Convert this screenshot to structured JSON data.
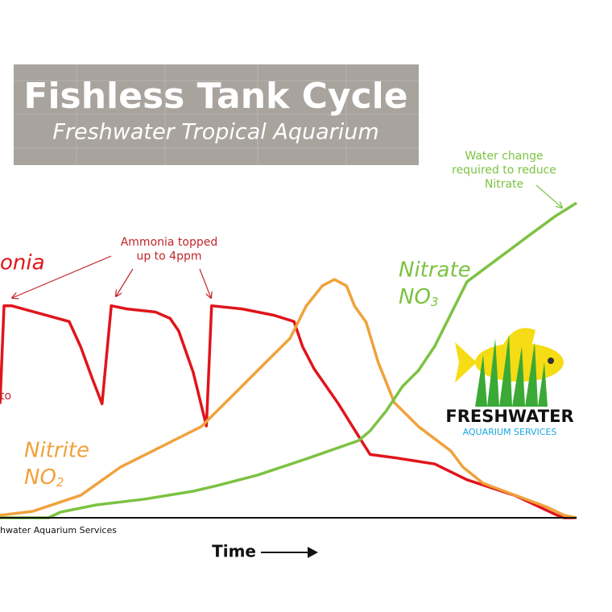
{
  "chart_data": {
    "type": "line",
    "title": "Fishless Tank Cycle",
    "subtitle": "Freshwater Tropical Aquarium",
    "xlabel": "Time",
    "footer": "hwater Aquarium Services",
    "xlim": [
      0,
      100
    ],
    "ylim": [
      0,
      100
    ],
    "series": [
      {
        "name": "onia",
        "color": "#e0151b",
        "x": [
          0,
          0.7,
          2,
          8,
          12,
          14,
          16,
          17.7,
          19.3,
          22,
          27,
          29.5,
          31,
          33.5,
          35.8,
          36.7,
          42,
          47.5,
          51,
          52.5,
          54.5,
          58.7,
          62.8,
          64.2,
          68.4,
          75.4,
          81,
          89.4,
          96.4,
          97.8,
          100
        ],
        "values": [
          36,
          67,
          67,
          64,
          62,
          54,
          44,
          36,
          67,
          66,
          65,
          63,
          59,
          46,
          29,
          67,
          66,
          64,
          62,
          54,
          47,
          36,
          24,
          20,
          19,
          17,
          12,
          7,
          1,
          0,
          0
        ]
      },
      {
        "name": "Nitrite",
        "formula": {
          "base": "NO",
          "sub": "2"
        },
        "color": "#f0a23c",
        "x": [
          0,
          5.6,
          14,
          20.9,
          27.9,
          34.9,
          40.5,
          46.1,
          50.3,
          53.1,
          55.9,
          58,
          60.1,
          61.5,
          63.5,
          65.6,
          68.4,
          72.6,
          78.2,
          80.3,
          83.8,
          89.4,
          95,
          97.8,
          100
        ],
        "values": [
          0.8,
          2,
          7.1,
          16,
          22.4,
          28.8,
          38.9,
          49.1,
          56.7,
          66.9,
          73.3,
          75.3,
          73.3,
          66.9,
          61.8,
          49.1,
          36.4,
          28.8,
          21.1,
          16,
          10.9,
          7.1,
          3.3,
          0.8,
          0
        ]
      },
      {
        "name": "Nitrate",
        "formula": {
          "base": "NO",
          "sub": "3"
        },
        "color": "#7cc242",
        "x": [
          0,
          8.4,
          10.5,
          16.8,
          25.1,
          33.5,
          37.7,
          44.7,
          53.1,
          62.2,
          64.2,
          67,
          69.8,
          72.6,
          75.4,
          78.2,
          81,
          86.6,
          92.2,
          96.4,
          100
        ],
        "values": [
          0,
          0,
          1.8,
          4.1,
          5.9,
          8.4,
          10.2,
          13.5,
          18.6,
          24.4,
          27.5,
          33.8,
          41.5,
          46.6,
          54.2,
          64.4,
          74.6,
          82.2,
          89.8,
          95.4,
          99.5
        ]
      }
    ],
    "annotations": [
      {
        "lines": [
          "Ammonia topped",
          "up to 4ppm"
        ]
      },
      {
        "lines": [
          "Water change",
          "required to reduce",
          "Nitrate"
        ]
      },
      {
        "lines": [
          "to"
        ]
      }
    ],
    "logo": {
      "name": "FRESHWATER",
      "tagline": "AQUARIUM SERVICES"
    }
  }
}
